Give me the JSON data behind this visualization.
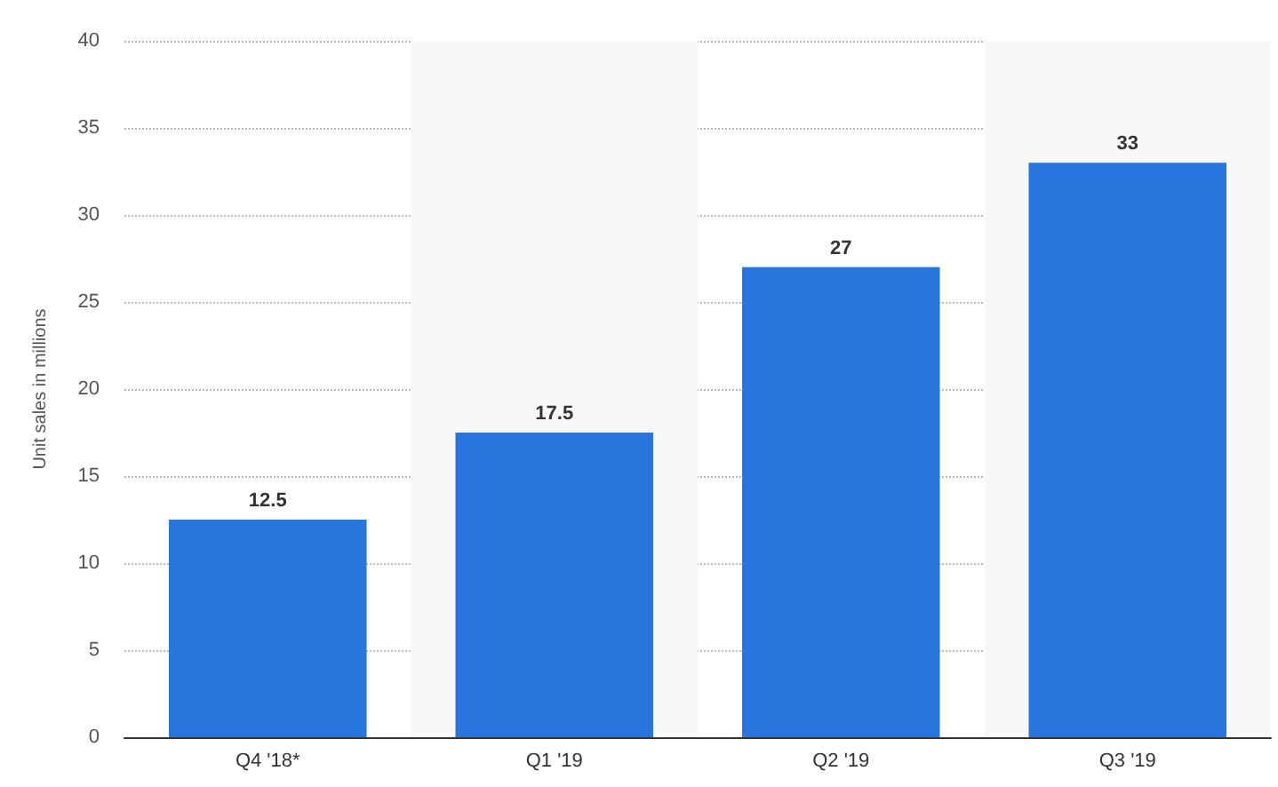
{
  "chart_data": {
    "type": "bar",
    "ylabel": "Unit sales in millions",
    "categories": [
      "Q4 '18*",
      "Q1 '19",
      "Q2 '19",
      "Q3 '19"
    ],
    "values": [
      12.5,
      17.5,
      27,
      33
    ],
    "color": "#2876dd",
    "ylim": [
      0,
      40
    ],
    "yticks": [
      0,
      5,
      10,
      15,
      20,
      25,
      30,
      35,
      40
    ],
    "grid": "y",
    "data_labels": true,
    "bands": [
      {
        "axis": "x",
        "from": "Q1 '19",
        "to": "Q1 '19",
        "color": "#f8f8f8"
      },
      {
        "axis": "x",
        "from": "Q3 '19",
        "to": "Q3 '19",
        "color": "#f8f8f8"
      }
    ]
  }
}
